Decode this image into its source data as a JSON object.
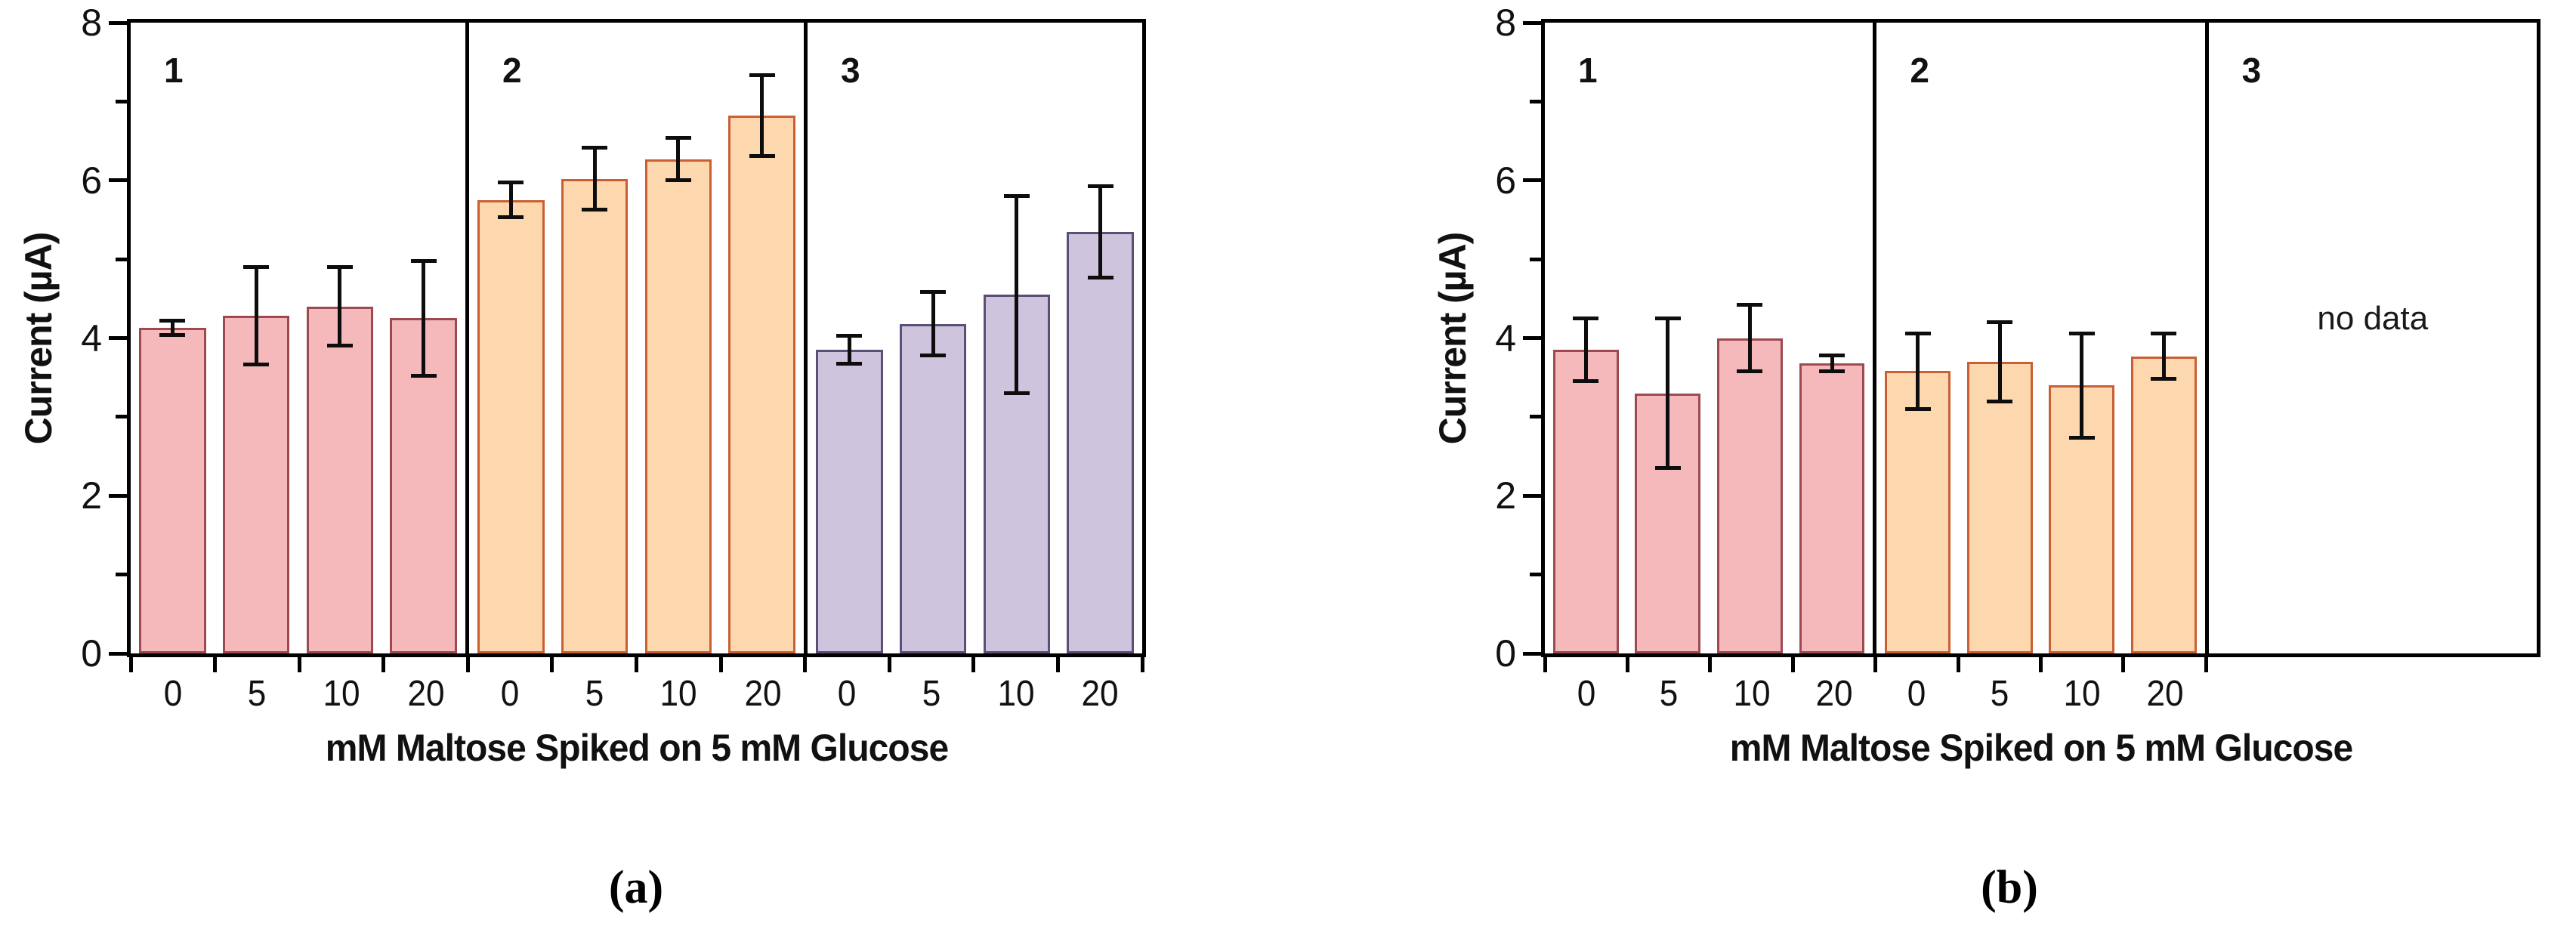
{
  "chart_data": [
    {
      "type": "bar",
      "panel_caption": "(a)",
      "ylabel": "Current (µA)",
      "xlabel": "mM Maltose Spiked on 5 mM Glucose",
      "ylim": [
        0,
        8
      ],
      "y_major_ticks": [
        0,
        2,
        4,
        6,
        8
      ],
      "y_minor_ticks": [
        1,
        3,
        5,
        7
      ],
      "categories": [
        "0",
        "5",
        "10",
        "20"
      ],
      "grid": false,
      "legend_position": "none",
      "frame_color": "#000000",
      "error_color": "#0d0d0d",
      "groups": [
        {
          "label": "1",
          "bar_fill": "#f5b9bc",
          "bar_border": "#9c4a50",
          "values": [
            4.13,
            4.28,
            4.4,
            4.25
          ],
          "errors": [
            0.09,
            0.62,
            0.5,
            0.73
          ]
        },
        {
          "label": "2",
          "bar_fill": "#fdd8ae",
          "bar_border": "#c95f33",
          "values": [
            5.75,
            6.02,
            6.27,
            6.82
          ],
          "errors": [
            0.22,
            0.39,
            0.27,
            0.51
          ]
        },
        {
          "label": "3",
          "bar_fill": "#cfc4dd",
          "bar_border": "#5b4f75",
          "values": [
            3.85,
            4.18,
            4.55,
            5.35
          ],
          "errors": [
            0.18,
            0.4,
            1.25,
            0.58
          ]
        }
      ]
    },
    {
      "type": "bar",
      "panel_caption": "(b)",
      "ylabel": "Current (µA)",
      "xlabel": "mM Maltose Spiked on 5 mM Glucose",
      "ylim": [
        0,
        8
      ],
      "y_major_ticks": [
        0,
        2,
        4,
        6,
        8
      ],
      "y_minor_ticks": [
        1,
        3,
        5,
        7
      ],
      "categories": [
        "0",
        "5",
        "10",
        "20"
      ],
      "grid": false,
      "legend_position": "none",
      "frame_color": "#000000",
      "error_color": "#0d0d0d",
      "groups": [
        {
          "label": "1",
          "bar_fill": "#f5b9bc",
          "bar_border": "#9c4a50",
          "values": [
            3.85,
            3.3,
            4.0,
            3.68
          ],
          "errors": [
            0.4,
            0.95,
            0.42,
            0.1
          ]
        },
        {
          "label": "2",
          "bar_fill": "#fdd8ae",
          "bar_border": "#c95f33",
          "values": [
            3.58,
            3.7,
            3.4,
            3.77
          ],
          "errors": [
            0.48,
            0.5,
            0.66,
            0.29
          ]
        },
        {
          "label": "3",
          "bar_fill": "#cfc4dd",
          "bar_border": "#5b4f75",
          "values": [],
          "errors": [],
          "no_data_text": "no data"
        }
      ]
    }
  ]
}
